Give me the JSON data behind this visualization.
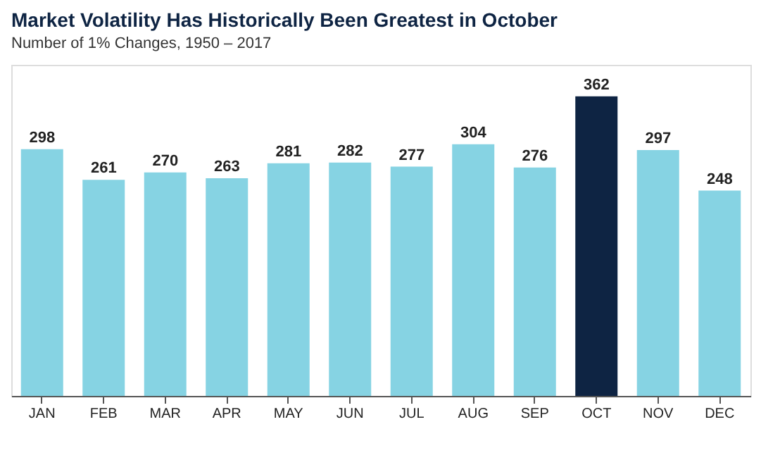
{
  "chart_data": {
    "type": "bar",
    "title": "Market Volatility Has Historically Been Greatest in October",
    "subtitle": "Number of 1% Changes, 1950 – 2017",
    "categories": [
      "JAN",
      "FEB",
      "MAR",
      "APR",
      "MAY",
      "JUN",
      "JUL",
      "AUG",
      "SEP",
      "OCT",
      "NOV",
      "DEC"
    ],
    "values": [
      298,
      261,
      270,
      263,
      281,
      282,
      277,
      304,
      276,
      362,
      297,
      248
    ],
    "colors": [
      "#86d3e3",
      "#86d3e3",
      "#86d3e3",
      "#86d3e3",
      "#86d3e3",
      "#86d3e3",
      "#86d3e3",
      "#86d3e3",
      "#86d3e3",
      "#0e2443",
      "#86d3e3",
      "#86d3e3"
    ],
    "tick_labels": "x",
    "data_labels": true
  }
}
